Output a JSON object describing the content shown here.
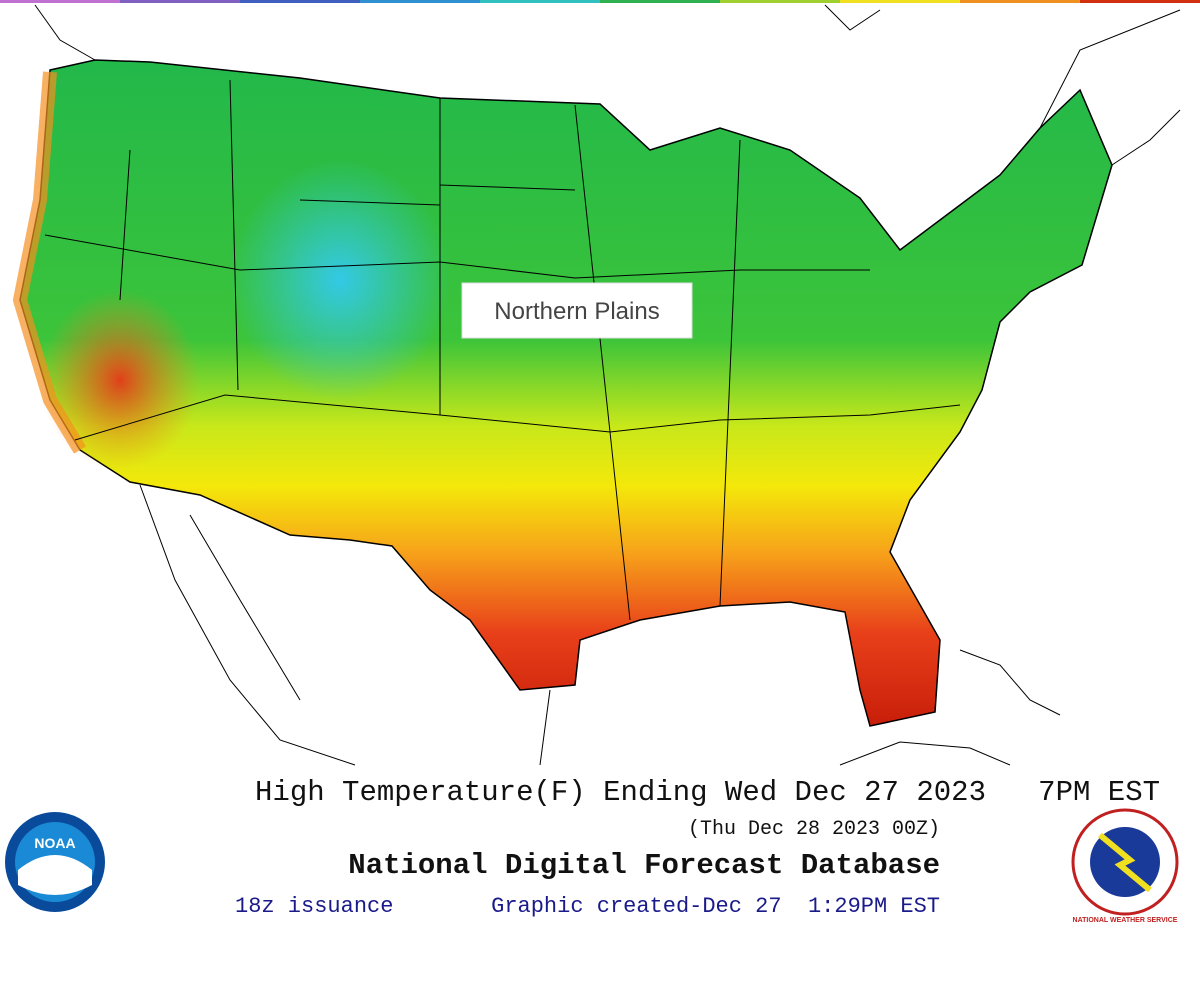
{
  "label": {
    "text": "Northern Plains"
  },
  "caption": {
    "title": "High Temperature(F) Ending Wed Dec 27 2023   7PM EST",
    "subtitle": "(Thu Dec 28 2023 00Z)",
    "database": "National Digital Forecast Database",
    "issuance": "18z issuance",
    "created": "Graphic created-Dec 27  1:29PM EST"
  },
  "logos": {
    "noaa": "NOAA",
    "nws": "NATIONAL WEATHER SERVICE"
  }
}
